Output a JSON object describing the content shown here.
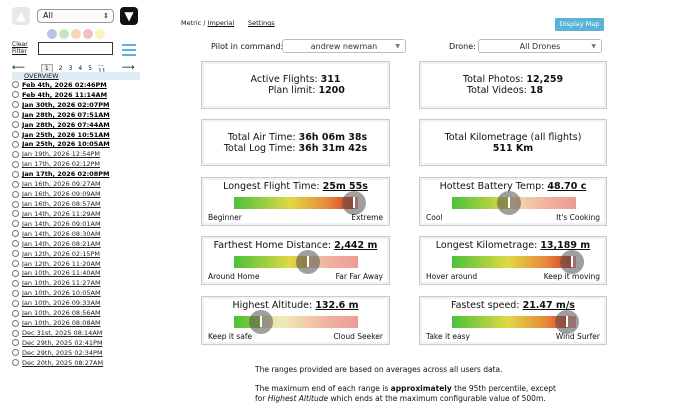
{
  "sidebar": {
    "filter_value": "All",
    "clear_filter": "Clear Filter",
    "search_placeholder": "",
    "pages": [
      "1",
      "2",
      "3",
      "4",
      "5",
      "... 11"
    ],
    "prev": "⟵",
    "next": "⟶",
    "overview": "OVERVIEW",
    "dot_colors": [
      "#b9c4ea",
      "#c7e6bd",
      "#f7d7b8",
      "#f3c0b8",
      "#f8f3c0"
    ],
    "flights": [
      {
        "label": "Feb 4th, 2026 02:46PM",
        "bold": true
      },
      {
        "label": "Feb 4th, 2026 11:14AM",
        "bold": true
      },
      {
        "label": "Jan 30th, 2026 02:07PM",
        "bold": true
      },
      {
        "label": "Jan 28th, 2026 07:51AM",
        "bold": true
      },
      {
        "label": "Jan 28th, 2026 07:44AM",
        "bold": true
      },
      {
        "label": "Jan 25th, 2026 10:51AM",
        "bold": true
      },
      {
        "label": "Jan 25th, 2026 10:05AM",
        "bold": true
      },
      {
        "label": "Jan 19th, 2026 12:54PM",
        "bold": false
      },
      {
        "label": "Jan 17th, 2026 02:12PM",
        "bold": false
      },
      {
        "label": "Jan 17th, 2026 02:08PM",
        "bold": true
      },
      {
        "label": "Jan 16th, 2026 09:27AM",
        "bold": false
      },
      {
        "label": "Jan 16th, 2026 09:09AM",
        "bold": false
      },
      {
        "label": "Jan 16th, 2026 08:57AM",
        "bold": false
      },
      {
        "label": "Jan 14th, 2026 11:29AM",
        "bold": false
      },
      {
        "label": "Jan 14th, 2026 09:01AM",
        "bold": false
      },
      {
        "label": "Jan 14th, 2026 08:30AM",
        "bold": false
      },
      {
        "label": "Jan 14th, 2026 08:21AM",
        "bold": false
      },
      {
        "label": "Jan 12th, 2026 02:15PM",
        "bold": false
      },
      {
        "label": "Jan 12th, 2026 11:20AM",
        "bold": false
      },
      {
        "label": "Jan 10th, 2026 11:40AM",
        "bold": false
      },
      {
        "label": "Jan 10th, 2026 11:27AM",
        "bold": false
      },
      {
        "label": "Jan 10th, 2026 10:05AM",
        "bold": false
      },
      {
        "label": "Jan 10th, 2026 09:33AM",
        "bold": false
      },
      {
        "label": "Jan 10th, 2026 08:56AM",
        "bold": false
      },
      {
        "label": "Jan 10th, 2026 08:08AM",
        "bold": false
      },
      {
        "label": "Dec 31st, 2025 08:14AM",
        "bold": false
      },
      {
        "label": "Dec 29th, 2025 02:41PM",
        "bold": false
      },
      {
        "label": "Dec 29th, 2025 02:34PM",
        "bold": false
      },
      {
        "label": "Dec 20th, 2025 08:27AM",
        "bold": false
      }
    ]
  },
  "header": {
    "metric": "Metric",
    "sep": " / ",
    "imperial": "Imperial",
    "settings": "Settings",
    "display_map": "Display Map",
    "pilot_label": "Pilot in command:",
    "pilot_value": "andrew newman",
    "drone_label": "Drone:",
    "drone_value": "All Drones"
  },
  "stats": {
    "active_flights_label": "Active Flights:",
    "active_flights": "311",
    "plan_limit_label": "Plan limit:",
    "plan_limit": "1200",
    "photos_label": "Total Photos:",
    "photos": "12,259",
    "videos_label": "Total Videos:",
    "videos": "18",
    "air_time_label": "Total Air Time:",
    "air_time": "36h 06m 38s",
    "log_time_label": "Total Log Time:",
    "log_time": "36h 31m 42s",
    "km_label": "Total Kilometrage (all flights)",
    "km": "511 Km"
  },
  "gauges": [
    {
      "title": "Longest Flight Time:",
      "value": "25m 55s",
      "low": "Beginner",
      "high": "Extreme",
      "level": 0.97
    },
    {
      "title": "Hottest Battery Temp:",
      "value": "48.70 c",
      "low": "Cool",
      "high": "It's Cooking",
      "level": 0.46
    },
    {
      "title": "Farthest Home Distance:",
      "value": "2,442 m",
      "low": "Around Home",
      "high": "Far Far Away",
      "level": 0.6
    },
    {
      "title": "Longest Kilometrage:",
      "value": "13,189 m",
      "low": "Hover around",
      "high": "Keep it moving",
      "level": 0.97
    },
    {
      "title": "Highest Altitude:",
      "value": "132.6 m",
      "low": "Keep it safe",
      "high": "Cloud Seeker",
      "level": 0.22
    },
    {
      "title": "Fastest speed:",
      "value": "21.47 m/s",
      "low": "Take it easy",
      "high": "Wind Surfer",
      "level": 0.93
    }
  ],
  "footer": {
    "p1": "The ranges provided are based on averages across all users data.",
    "p2a": "The maximum end of each range is ",
    "p2b": "approximately",
    "p2c": " the 95th percentile, except",
    "p3a": "for ",
    "p3b": "Highest Altitude",
    "p3c": " which ends at the maximum configurable value of 500m."
  }
}
